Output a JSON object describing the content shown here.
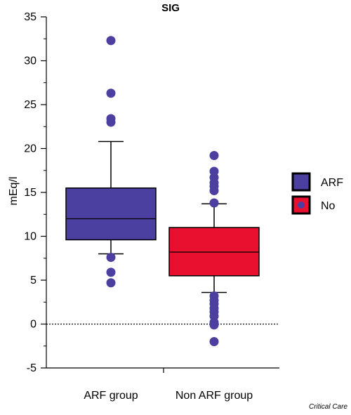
{
  "chart_data": {
    "type": "box",
    "title": "SIG",
    "ylabel": "mEq/l",
    "xlabel": "",
    "ylim": [
      -5,
      35
    ],
    "yticks": [
      -5,
      0,
      5,
      10,
      15,
      20,
      25,
      30,
      35
    ],
    "reference_line": 0,
    "legend_position": "right",
    "categories": [
      "ARF group",
      "Non ARF group"
    ],
    "series": [
      {
        "name": "ARF",
        "category": "ARF group",
        "color": "#4b3fa0",
        "whisker_low": 8.0,
        "q1": 9.6,
        "median": 12.0,
        "q3": 15.5,
        "whisker_high": 20.8,
        "outliers": [
          4.7,
          5.9,
          7.6,
          23.0,
          23.4,
          26.3,
          32.3
        ]
      },
      {
        "name": "No",
        "category": "Non ARF group",
        "color": "#e8102e",
        "whisker_low": 3.6,
        "q1": 5.5,
        "median": 8.2,
        "q3": 11.0,
        "whisker_high": 13.7,
        "outliers": [
          -2.0,
          -0.1,
          0.2,
          0.9,
          1.4,
          1.8,
          2.3,
          2.7,
          3.2,
          13.8,
          15.2,
          15.7,
          16.1,
          16.7,
          17.4,
          19.2
        ]
      }
    ],
    "outlier_color": "#4b3fa0"
  },
  "credit": "Critical Care"
}
